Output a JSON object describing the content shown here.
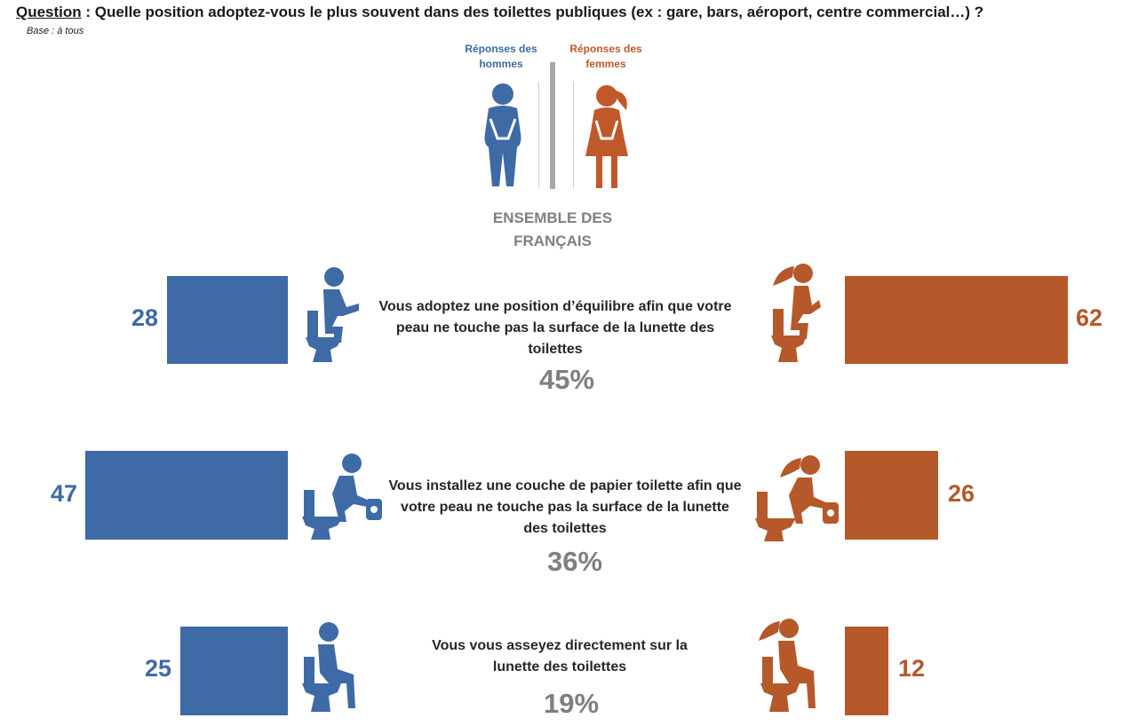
{
  "question": {
    "label": "Question",
    "text": " : Quelle position adoptez-vous le plus souvent dans des toilettes publiques (ex : gare, bars, aéroport, centre commercial…) ?"
  },
  "base": "Base : à tous",
  "legend": {
    "men": "Réponses des hommes",
    "women": "Réponses des femmes"
  },
  "overall_title": "ENSEMBLE DES FRANÇAIS",
  "colors": {
    "men": "#3e6aa6",
    "women": "#b5582a",
    "overall": "#7f7f7f"
  },
  "chart_data": {
    "type": "bar",
    "categories": [
      "Vous adoptez une position d’équilibre afin que votre peau ne touche pas la surface de la lunette des toilettes",
      "Vous installez une couche de papier toilette afin que votre peau ne touche pas la surface de la lunette des toilettes",
      "Vous vous asseyez directement sur la lunette des toilettes"
    ],
    "series": [
      {
        "name": "Réponses des hommes",
        "values": [
          28,
          47,
          25
        ]
      },
      {
        "name": "Réponses des femmes",
        "values": [
          62,
          26,
          12
        ]
      },
      {
        "name": "ENSEMBLE DES FRANÇAIS",
        "values": [
          45,
          36,
          19
        ]
      }
    ],
    "overall_labels": [
      "45%",
      "36%",
      "19%"
    ],
    "value_labels_men": [
      "28",
      "47",
      "25"
    ],
    "value_labels_women": [
      "62",
      "26",
      "12"
    ]
  }
}
